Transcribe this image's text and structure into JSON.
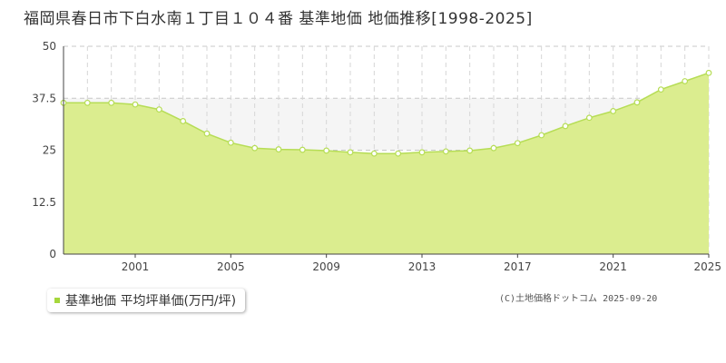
{
  "title": "福岡県春日市下白水南１丁目１０４番 基準地価 地価推移[1998-2025]",
  "legend_label": "基準地価 平均坪単価(万円/坪)",
  "copyright": "(C)土地価格ドットコム 2025-09-20",
  "colors": {
    "fill": "#dbed8f",
    "line": "#b6dd55",
    "marker_stroke": "#b6dd55",
    "marker_fill": "#ffffff",
    "band": "#f5f5f5"
  },
  "chart_data": {
    "type": "area",
    "title": "",
    "xlabel": "",
    "ylabel": "",
    "ylim": [
      0,
      50
    ],
    "xlim": [
      1998,
      2025
    ],
    "yticks": [
      0,
      12.5,
      25,
      37.5,
      50
    ],
    "ytick_labels": [
      "0",
      "12.5",
      "25",
      "37.5",
      "50"
    ],
    "xtick_labels": [
      "2001",
      "2005",
      "2009",
      "2013",
      "2017",
      "2021",
      "2025"
    ],
    "x": [
      1998,
      1999,
      2000,
      2001,
      2002,
      2003,
      2004,
      2005,
      2006,
      2007,
      2008,
      2009,
      2010,
      2011,
      2012,
      2013,
      2014,
      2015,
      2016,
      2017,
      2018,
      2019,
      2020,
      2021,
      2022,
      2023,
      2024,
      2025
    ],
    "series": [
      {
        "name": "基準地価 平均坪単価(万円/坪)",
        "values": [
          36.4,
          36.4,
          36.4,
          36.0,
          34.8,
          32.0,
          29.0,
          26.8,
          25.5,
          25.2,
          25.1,
          24.9,
          24.5,
          24.2,
          24.2,
          24.5,
          24.7,
          24.9,
          25.5,
          26.7,
          28.6,
          30.8,
          32.8,
          34.4,
          36.5,
          39.6,
          41.6,
          43.6
        ]
      }
    ],
    "legend_position": "bottom-left",
    "grid": true
  }
}
